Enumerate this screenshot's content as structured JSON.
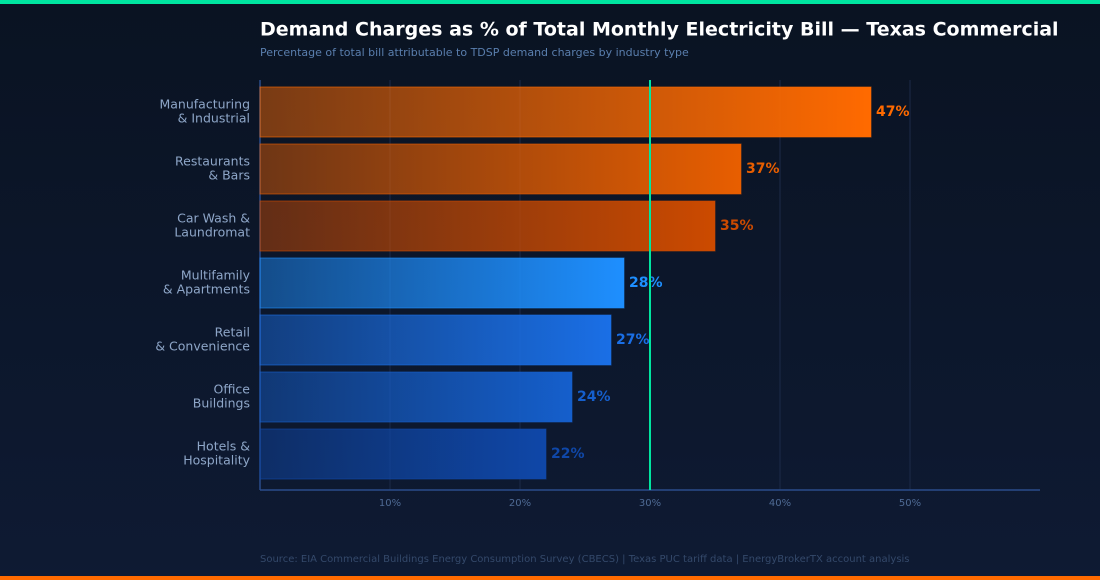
{
  "chart_data": {
    "type": "hbar",
    "title": "Demand Charges as % of Total Monthly Electricity Bill — Texas Commercial",
    "subtitle": "Percentage of total bill attributable to TDSP demand charges by industry type",
    "source": "Source: EIA Commercial Buildings Energy Consumption Survey (CBECS) | Texas PUC tariff data | EnergyBrokerTX account analysis",
    "categories": [
      [
        "Manufacturing",
        "& Industrial"
      ],
      [
        "Restaurants",
        "& Bars"
      ],
      [
        "Car Wash &",
        "Laundromat"
      ],
      [
        "Multifamily",
        "& Apartments"
      ],
      [
        "Retail",
        "& Convenience"
      ],
      [
        "Office",
        "Buildings"
      ],
      [
        "Hotels &",
        "Hospitality"
      ]
    ],
    "values": [
      47,
      37,
      35,
      28,
      27,
      24,
      22
    ],
    "value_labels": [
      "47%",
      "37%",
      "35%",
      "28%",
      "27%",
      "24%",
      "22%"
    ],
    "colors": [
      "#ff6a00",
      "#e85e00",
      "#cc4a00",
      "#1e8fff",
      "#1a6fe6",
      "#155fcc",
      "#0f47a8"
    ],
    "xlim": [
      0,
      60
    ],
    "xticks": [
      {
        "value": 10,
        "label": "10%"
      },
      {
        "value": 20,
        "label": "20%"
      },
      {
        "value": 30,
        "label": "30%"
      },
      {
        "value": 40,
        "label": "40%"
      },
      {
        "value": 50,
        "label": "50%"
      }
    ],
    "grid": true,
    "reference_line": 30,
    "reference_color": "#00e5a0"
  }
}
